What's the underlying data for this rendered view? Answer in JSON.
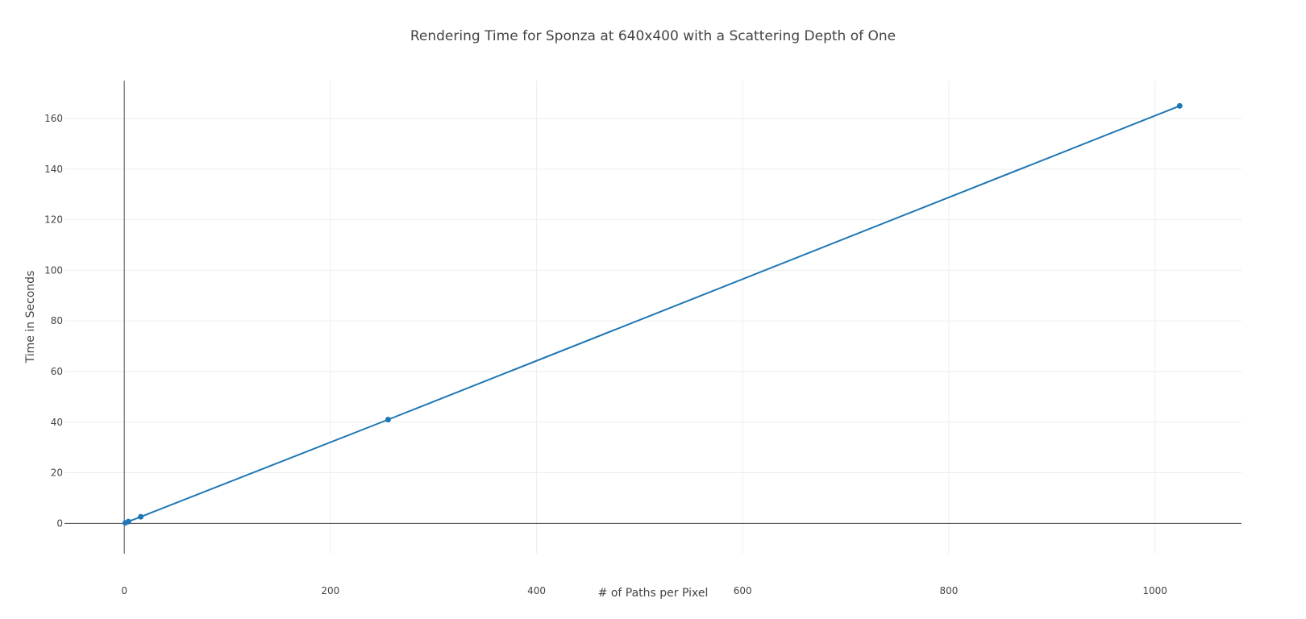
{
  "chart_data": {
    "type": "line",
    "title": "Rendering Time for Sponza at 640x400 with a Scattering Depth of One",
    "xlabel": "# of Paths per Pixel",
    "ylabel": "Time in Seconds",
    "xlim": [
      -58,
      1084
    ],
    "ylim": [
      -12,
      175
    ],
    "x_ticks": [
      0,
      200,
      400,
      600,
      800,
      1000
    ],
    "y_ticks": [
      0,
      20,
      40,
      60,
      80,
      100,
      120,
      140,
      160
    ],
    "grid": true,
    "legend": "none",
    "series": [
      {
        "color": "#1f77b4",
        "x": [
          1,
          4,
          16,
          256,
          1024
        ],
        "y": [
          0.2,
          0.7,
          2.6,
          41,
          165
        ]
      }
    ]
  }
}
